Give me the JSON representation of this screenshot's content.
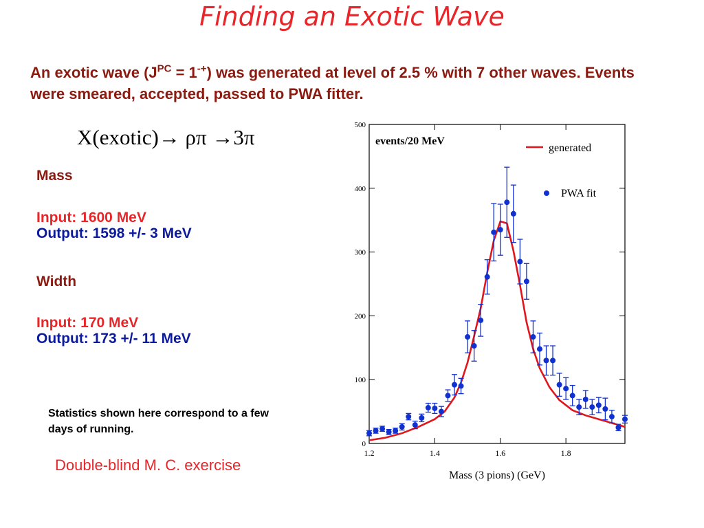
{
  "slide": {
    "title": "Finding an Exotic Wave",
    "intro_a": "An exotic wave (J",
    "intro_sup1": "PC",
    "intro_b": " = 1",
    "intro_sup2": "-+",
    "intro_c": ") was generated at level of 2.5 % with 7 other waves. Events were smeared, accepted, passed to PWA fitter.",
    "reaction": "X(exotic)→ ρπ →3π",
    "mass_heading": "Mass",
    "mass_input": "Input:  1600 MeV",
    "mass_output": "Output: 1598 +/- 3 MeV",
    "width_heading": "Width",
    "width_input": "Input: 170 MeV",
    "width_output": "Output:  173 +/- 11 MeV",
    "stats_note": "Statistics shown here correspond to a few days of running.",
    "footer": "Double-blind M. C. exercise"
  },
  "colors": {
    "title": "#e8262a",
    "dark_red": "#8b1a10",
    "red": "#e8262a",
    "blue": "#0c1a9c",
    "fit_points": "#1030d0",
    "generated_curve": "#e0161c"
  },
  "chart_data": {
    "type": "scatter",
    "xlabel": "Mass (3 pions)  (GeV)",
    "ylabel": "events/20 MeV",
    "xlim": [
      1.2,
      1.98
    ],
    "ylim": [
      0,
      500
    ],
    "xticks": [
      "1.2",
      "1.4",
      "1.6",
      "1.8"
    ],
    "yticks": [
      "0",
      "100",
      "200",
      "300",
      "400",
      "500"
    ],
    "legend": {
      "position": "top-right",
      "generated_label": "generated",
      "fit_label": "PWA fit"
    },
    "series": [
      {
        "name": "PWA fit",
        "style": "points-with-errorbars",
        "x": [
          1.2,
          1.22,
          1.24,
          1.26,
          1.28,
          1.3,
          1.32,
          1.34,
          1.36,
          1.38,
          1.4,
          1.42,
          1.44,
          1.46,
          1.48,
          1.5,
          1.52,
          1.54,
          1.56,
          1.58,
          1.6,
          1.62,
          1.64,
          1.66,
          1.68,
          1.7,
          1.72,
          1.74,
          1.76,
          1.78,
          1.8,
          1.82,
          1.84,
          1.86,
          1.88,
          1.9,
          1.92,
          1.94,
          1.96,
          1.98
        ],
        "y": [
          16,
          20,
          23,
          18,
          20,
          26,
          42,
          29,
          40,
          56,
          55,
          50,
          75,
          92,
          90,
          167,
          153,
          193,
          261,
          331,
          335,
          378,
          360,
          285,
          254,
          167,
          148,
          130,
          130,
          92,
          86,
          75,
          57,
          69,
          57,
          60,
          54,
          42,
          25,
          38
        ],
        "err": [
          4,
          4,
          4,
          4,
          4,
          5,
          5,
          6,
          6,
          7,
          8,
          8,
          9,
          16,
          12,
          25,
          24,
          25,
          27,
          45,
          40,
          55,
          45,
          35,
          28,
          25,
          25,
          23,
          23,
          18,
          17,
          16,
          12,
          14,
          12,
          12,
          17,
          10,
          5,
          6
        ]
      },
      {
        "name": "generated",
        "style": "line",
        "x": [
          1.2,
          1.25,
          1.3,
          1.35,
          1.4,
          1.43,
          1.46,
          1.48,
          1.5,
          1.52,
          1.54,
          1.56,
          1.58,
          1.6,
          1.62,
          1.64,
          1.66,
          1.68,
          1.7,
          1.72,
          1.75,
          1.78,
          1.82,
          1.86,
          1.9,
          1.94,
          1.98
        ],
        "y": [
          5,
          9,
          16,
          26,
          38,
          50,
          72,
          95,
          127,
          168,
          212,
          268,
          318,
          348,
          345,
          302,
          248,
          190,
          148,
          118,
          88,
          68,
          52,
          44,
          38,
          32,
          26
        ]
      }
    ]
  }
}
